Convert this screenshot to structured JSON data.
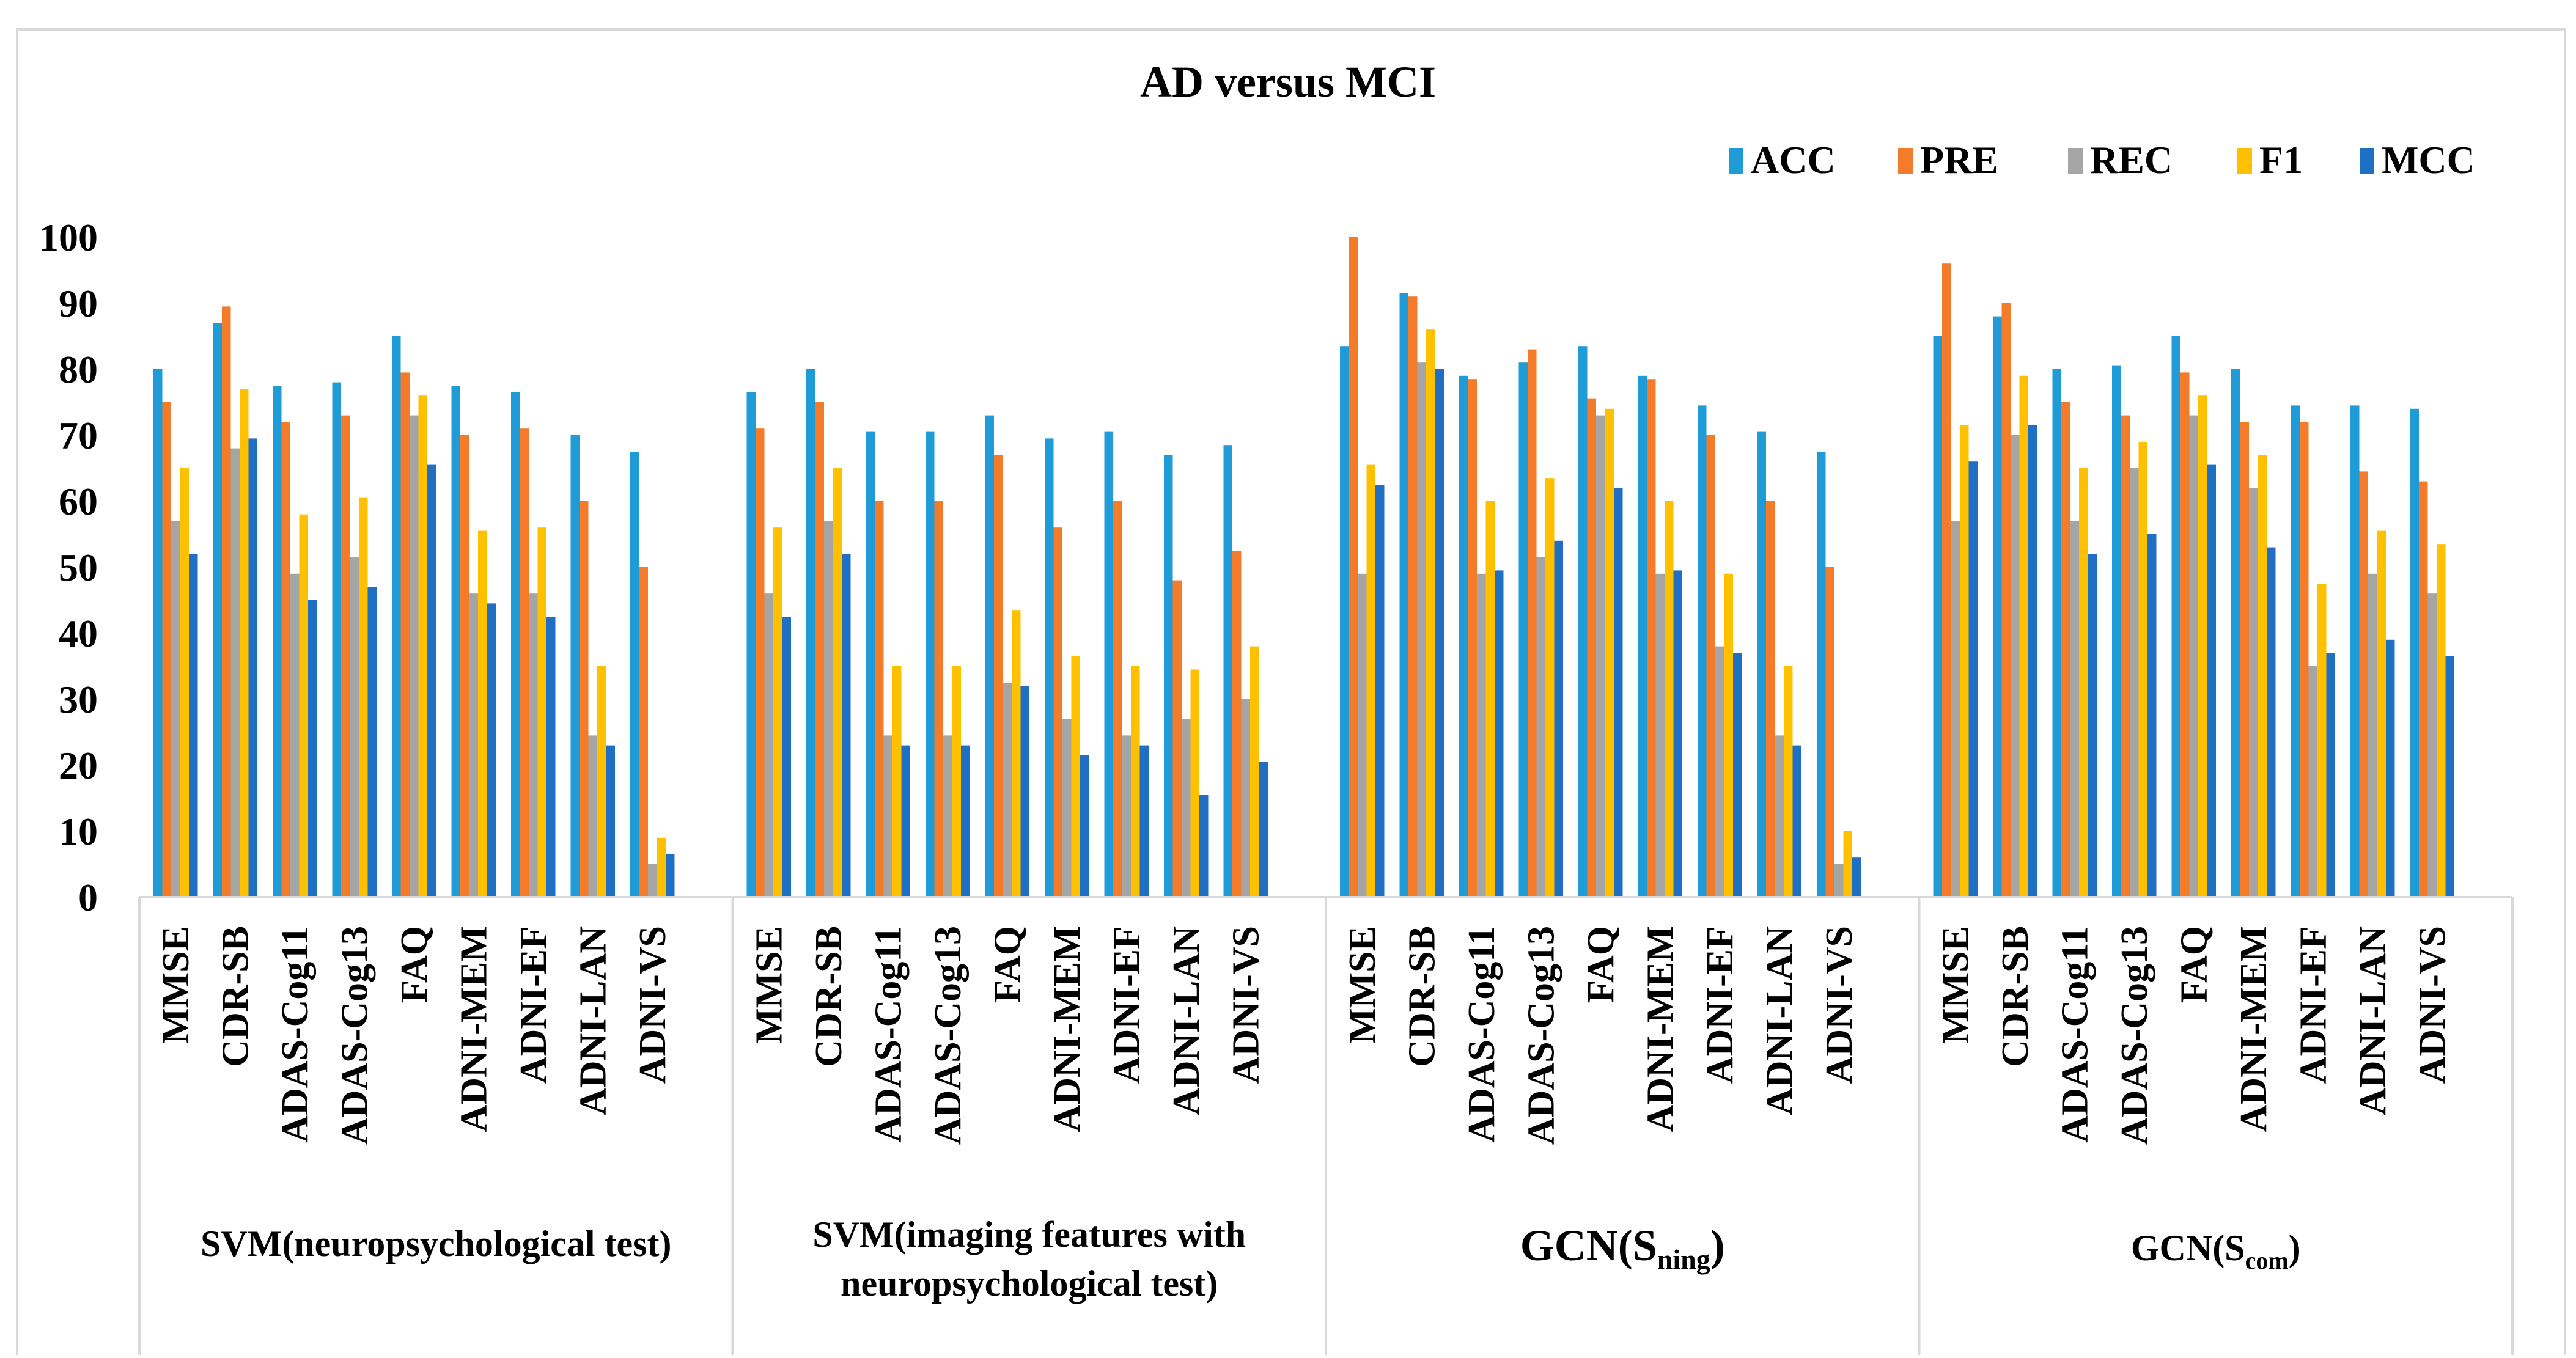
{
  "chart_data": {
    "type": "bar",
    "title": "AD versus MCI",
    "xlabel": "",
    "ylabel": "",
    "ylim": [
      0,
      100
    ],
    "yticks": [
      0,
      10,
      20,
      30,
      40,
      50,
      60,
      70,
      80,
      90,
      100
    ],
    "grid": false,
    "legend_position": "top-right",
    "categories": [
      "MMSE",
      "CDR-SB",
      "ADAS-Cog11",
      "ADAS-Cog13",
      "FAQ",
      "ADNI-MEM",
      "ADNI-EF",
      "ADNI-LAN",
      "ADNI-VS"
    ],
    "series_names": [
      "ACC",
      "PRE",
      "REC",
      "F1",
      "MCC"
    ],
    "colors": [
      "#1f9bd8",
      "#f47b2a",
      "#a5a5a5",
      "#ffc000",
      "#1f6fc4"
    ],
    "groups": [
      {
        "label": "SVM(neuropsychological test)",
        "label_lines": [
          "SVM(neuropsychological test)"
        ],
        "values": [
          [
            80,
            75,
            57,
            65,
            52
          ],
          [
            87,
            89.5,
            68,
            77,
            69.5
          ],
          [
            77.5,
            72,
            49,
            58,
            45
          ],
          [
            78,
            73,
            51.5,
            60.5,
            47
          ],
          [
            85,
            79.5,
            73,
            76,
            65.5
          ],
          [
            77.5,
            70,
            46,
            55.5,
            44.5
          ],
          [
            76.5,
            71,
            46,
            56,
            42.5
          ],
          [
            70,
            60,
            24.5,
            35,
            23
          ],
          [
            67.5,
            50,
            5,
            9,
            6.5
          ]
        ]
      },
      {
        "label": "SVM(imaging features with neuropsychological test)",
        "label_lines": [
          "SVM(imaging features with",
          "neuropsychological test)"
        ],
        "values": [
          [
            76.5,
            71,
            46,
            56,
            42.5
          ],
          [
            80,
            75,
            57,
            65,
            52
          ],
          [
            70.5,
            60,
            24.5,
            35,
            23
          ],
          [
            70.5,
            60,
            24.5,
            35,
            23
          ],
          [
            73,
            67,
            32.5,
            43.5,
            32
          ],
          [
            69.5,
            56,
            27,
            36.5,
            21.5
          ],
          [
            70.5,
            60,
            24.5,
            35,
            23
          ],
          [
            67,
            48,
            27,
            34.5,
            15.5
          ],
          [
            68.5,
            52.5,
            30,
            38,
            20.5
          ]
        ]
      },
      {
        "label": "GCN(Sning)",
        "label_main": "GCN(S",
        "label_sub": "ning",
        "label_end": ")",
        "values": [
          [
            83.5,
            100,
            49,
            65.5,
            62.5
          ],
          [
            91.5,
            91,
            81,
            86,
            80
          ],
          [
            79,
            78.5,
            49,
            60,
            49.5
          ],
          [
            81,
            83,
            51.5,
            63.5,
            54
          ],
          [
            83.5,
            75.5,
            73,
            74,
            62
          ],
          [
            79,
            78.5,
            49,
            60,
            49.5
          ],
          [
            74.5,
            70,
            38,
            49,
            37
          ],
          [
            70.5,
            60,
            24.5,
            35,
            23
          ],
          [
            67.5,
            50,
            5,
            10,
            6
          ]
        ]
      },
      {
        "label": "GCN(Scom)",
        "label_main": "GCN(S",
        "label_sub": "com",
        "label_end": ")",
        "values": [
          [
            85,
            96,
            57,
            71.5,
            66
          ],
          [
            88,
            90,
            70,
            79,
            71.5
          ],
          [
            80,
            75,
            57,
            65,
            52
          ],
          [
            80.5,
            73,
            65,
            69,
            55
          ],
          [
            85,
            79.5,
            73,
            76,
            65.5
          ],
          [
            80,
            72,
            62,
            67,
            53
          ],
          [
            74.5,
            72,
            35,
            47.5,
            37
          ],
          [
            74.5,
            64.5,
            49,
            55.5,
            39
          ],
          [
            74,
            63,
            46,
            53.5,
            36.5
          ]
        ]
      }
    ]
  }
}
